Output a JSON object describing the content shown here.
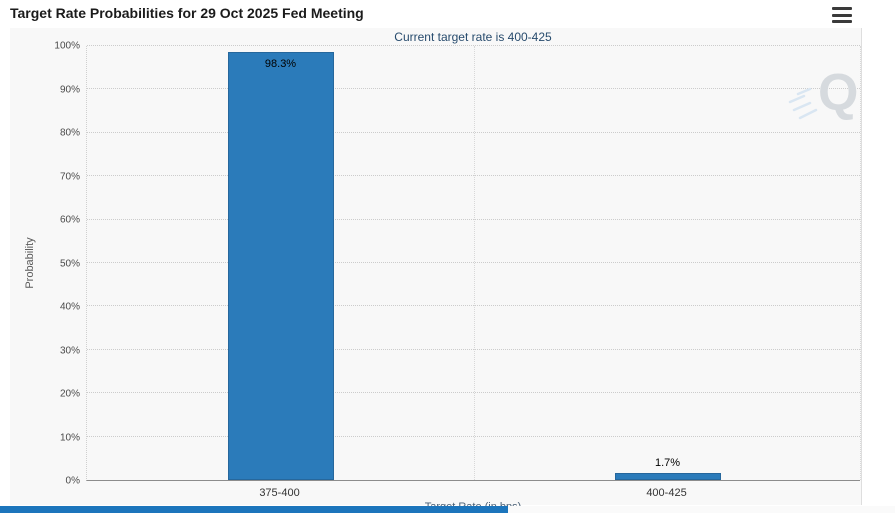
{
  "header": {
    "title": "Target Rate Probabilities for 29 Oct 2025 Fed Meeting"
  },
  "watermark": {
    "letter": "Q"
  },
  "chart_data": {
    "type": "bar",
    "title": "Target Rate Probabilities for 29 Oct 2025 Fed Meeting",
    "subtitle": "Current target rate is 400-425",
    "categories": [
      "375-400",
      "400-425"
    ],
    "values": [
      98.3,
      1.7
    ],
    "bar_labels": [
      "98.3%",
      "1.7%"
    ],
    "xlabel": "Target Rate (in bps)",
    "ylabel": "Probability",
    "ylim": [
      0,
      100
    ],
    "ytick_step": 10,
    "ytick_suffix": "%",
    "bar_color": "#2b7bba",
    "grid": "dotted horizontal gridlines every 10%, dotted vertical gridlines at category boundaries",
    "legend": "none",
    "value_label_placement": [
      "inside-top",
      "above"
    ]
  },
  "colors": {
    "bar": "#2b7bba",
    "subtitle_text": "#274b6d",
    "panel_background": "#f8f8f8",
    "scrollbar_thumb": "#1c75bc"
  }
}
